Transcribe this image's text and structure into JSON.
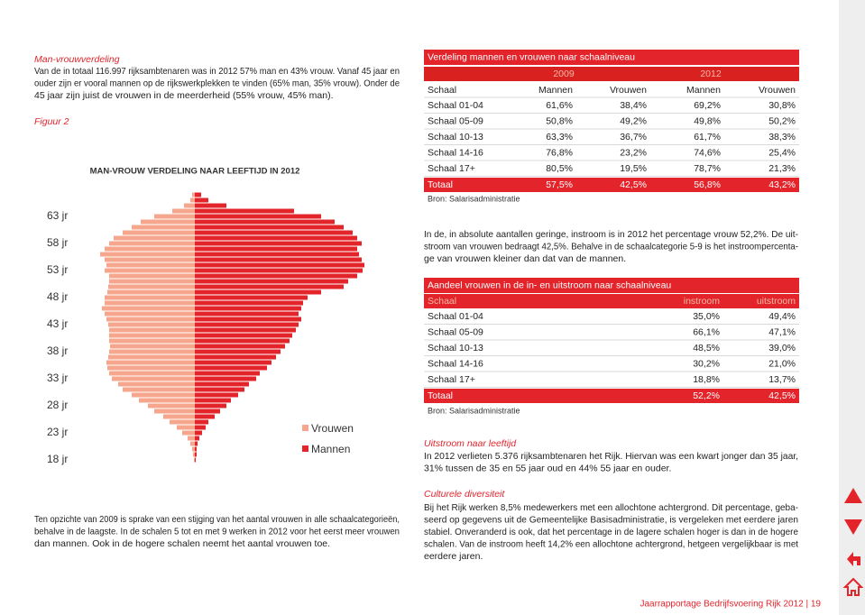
{
  "intro": {
    "heading": "Man-vrouwverdeling",
    "lines": [
      "Van de in totaal 116.997 rijksambtenaren was in 2012 57% man en 43% vrouw. Vanaf 45 jaar en",
      "ouder zijn er vooral mannen op de rijkswerkplekken te vinden (65% man, 35% vrouw). Onder de",
      "45 jaar zijn juist de vrouwen in de meerderheid (55% vrouw, 45% man)."
    ]
  },
  "figure_label": "Figuur 2",
  "chart_data": {
    "type": "pyramid",
    "title": "MAN-VROUW VERDELING NAAR LEEFTIJD IN 2012",
    "categories": [
      "18 jr",
      null,
      null,
      null,
      null,
      "23 jr",
      null,
      null,
      null,
      null,
      "28 jr",
      null,
      null,
      null,
      null,
      "33 jr",
      null,
      null,
      null,
      null,
      "38 jr",
      null,
      null,
      null,
      null,
      "43 jr",
      null,
      null,
      null,
      null,
      "48 jr",
      null,
      null,
      null,
      null,
      "53 jr",
      null,
      null,
      null,
      null,
      "58 jr",
      null,
      null,
      null,
      null,
      "63 jr",
      null,
      null,
      null,
      null
    ],
    "series": [
      {
        "name": "Vrouwen",
        "color": "#f5a68c",
        "values": [
          1,
          2,
          3,
          5,
          8,
          14,
          20,
          28,
          35,
          45,
          52,
          62,
          70,
          80,
          85,
          92,
          95,
          97,
          98,
          96,
          95,
          94,
          95,
          95,
          95,
          96,
          98,
          100,
          103,
          100,
          100,
          97,
          96,
          95,
          95,
          100,
          98,
          100,
          105,
          100,
          95,
          90,
          80,
          70,
          60,
          45,
          25,
          12,
          5,
          3
        ]
      },
      {
        "name": "Mannen",
        "color": "#e3242b",
        "values": [
          1,
          2,
          2,
          3,
          5,
          8,
          12,
          15,
          22,
          28,
          35,
          40,
          48,
          55,
          60,
          68,
          72,
          80,
          85,
          90,
          95,
          100,
          105,
          108,
          112,
          115,
          118,
          115,
          118,
          120,
          125,
          140,
          165,
          170,
          180,
          186,
          188,
          185,
          182,
          180,
          185,
          180,
          175,
          165,
          155,
          140,
          110,
          35,
          15,
          7
        ]
      }
    ]
  },
  "chart_note": {
    "lines": [
      "Ten opzichte van 2009 is sprake van een stijging van het aantal vrouwen in alle schaalcategorieën,",
      "behalve in de laagste. In de schalen 5 tot en met 9 werken in 2012 voor het eerst meer vrouwen",
      "dan mannen. Ook in de hogere schalen neemt het aantal vrouwen toe."
    ]
  },
  "table1": {
    "title": "Verdeling mannen en vrouwen naar schaalniveau",
    "years": [
      "2009",
      "2012"
    ],
    "columns": [
      "Schaal",
      "Mannen",
      "Vrouwen",
      "Mannen",
      "Vrouwen"
    ],
    "rows": [
      [
        "Schaal 01-04",
        "61,6%",
        "38,4%",
        "69,2%",
        "30,8%"
      ],
      [
        "Schaal 05-09",
        "50,8%",
        "49,2%",
        "49,8%",
        "50,2%"
      ],
      [
        "Schaal 10-13",
        "63,3%",
        "36,7%",
        "61,7%",
        "38,3%"
      ],
      [
        "Schaal 14-16",
        "76,8%",
        "23,2%",
        "74,6%",
        "25,4%"
      ],
      [
        "Schaal 17+",
        "80,5%",
        "19,5%",
        "78,7%",
        "21,3%"
      ]
    ],
    "total": [
      "Totaal",
      "57,5%",
      "42,5%",
      "56,8%",
      "43,2%"
    ],
    "source": "Bron: Salarisadministratie"
  },
  "paragraph1": {
    "lines": [
      "In de, in absolute aantallen geringe, instroom is in 2012 het percentage vrouw 52,2%. De uit-",
      "stroom van vrouwen bedraagt 42,5%. Behalve in de schaalcategorie 5-9 is het instroompercenta-",
      "ge van vrouwen kleiner dan dat van de mannen."
    ]
  },
  "table2": {
    "title": "Aandeel vrouwen in de in- en uitstroom naar schaalniveau",
    "columns": [
      "Schaal",
      "instroom",
      "uitstroom"
    ],
    "rows": [
      [
        "Schaal 01-04",
        "35,0%",
        "49,4%"
      ],
      [
        "Schaal 05-09",
        "66,1%",
        "47,1%"
      ],
      [
        "Schaal 10-13",
        "48,5%",
        "39,0%"
      ],
      [
        "Schaal 14-16",
        "30,2%",
        "21,0%"
      ],
      [
        "Schaal 17+",
        "18,8%",
        "13,7%"
      ]
    ],
    "total": [
      "Totaal",
      "52,2%",
      "42,5%"
    ],
    "source": "Bron: Salarisadministratie"
  },
  "section1": {
    "heading": "Uitstroom naar leeftijd",
    "lines": [
      "In 2012 verlieten 5.376 rijksambtenaren het Rijk. Hiervan was een kwart jonger dan 35 jaar,",
      "31% tussen de 35 en 55 jaar oud en 44% 55 jaar en ouder."
    ]
  },
  "section2": {
    "heading": "Culturele diversiteit",
    "lines": [
      "Bij het Rijk werken 8,5% medewerkers met een allochtone achtergrond. Dit percentage, geba-",
      "seerd op gegevens uit de Gemeentelijke Basisadministratie, is vergeleken met eerdere jaren",
      "stabiel. Onveranderd is ook, dat het percentage in de lagere schalen hoger is dan in de hogere",
      "schalen. Van de instroom heeft 14,2% een allochtone achtergrond, hetgeen vergelijkbaar is met",
      "eerdere jaren."
    ]
  },
  "footer": "Jaarrapportage Bedrijfsvoering Rijk 2012 | 19"
}
